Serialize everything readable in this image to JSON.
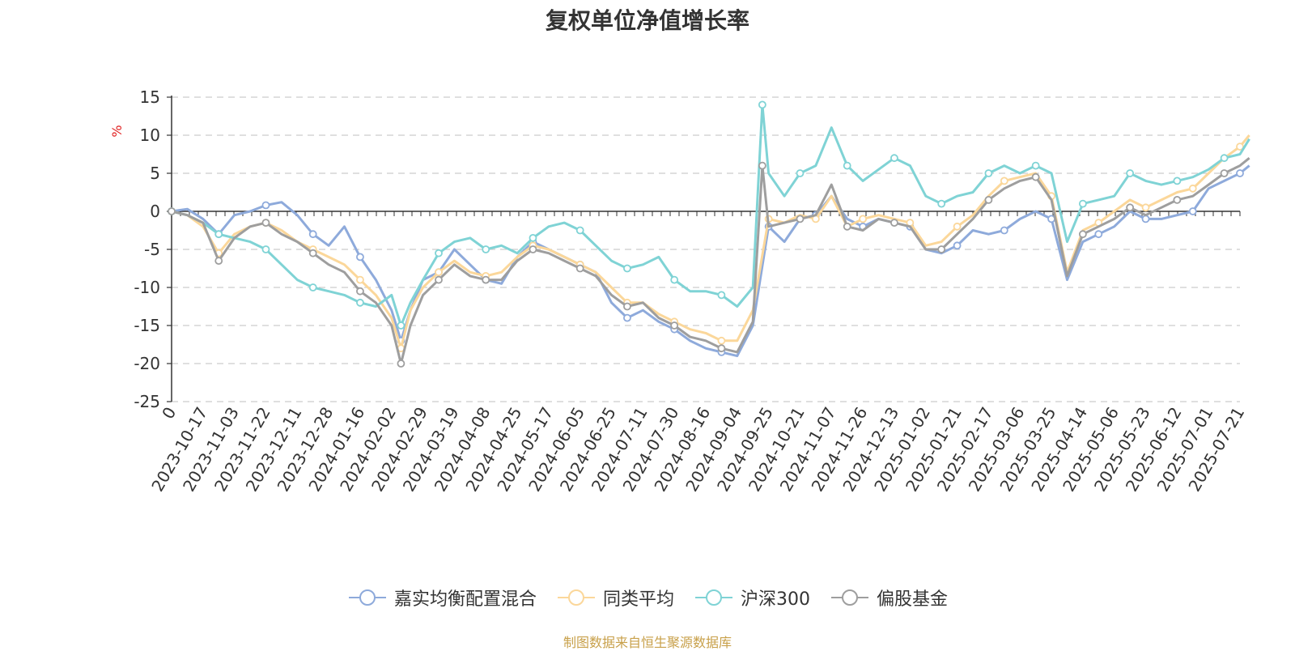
{
  "colors": {
    "jiashi": "#8eaadb",
    "tonglei": "#fbd79a",
    "hs300": "#7fd3d5",
    "piangu": "#9e9e9e",
    "ylabel": "#e02020",
    "source": "#c8a04a"
  },
  "source_note": "制图数据来自恒生聚源数据库",
  "chart_data": {
    "type": "line",
    "title": "复权单位净值增长率",
    "xlabel": "",
    "ylabel": "%",
    "ylim": [
      -25,
      15
    ],
    "yticks": [
      15,
      10,
      5,
      0,
      -5,
      -10,
      -15,
      -20,
      -25
    ],
    "xticks": [
      "0",
      "2023-10-17",
      "2023-11-03",
      "2023-11-22",
      "2023-12-11",
      "2023-12-28",
      "2024-01-16",
      "2024-02-02",
      "2024-02-29",
      "2024-03-19",
      "2024-04-08",
      "2024-04-25",
      "2024-05-17",
      "2024-06-05",
      "2024-06-25",
      "2024-07-11",
      "2024-07-30",
      "2024-08-16",
      "2024-09-04",
      "2024-09-25",
      "2024-10-21",
      "2024-11-07",
      "2024-11-26",
      "2024-12-13",
      "2025-01-02",
      "2025-01-21",
      "2025-02-17",
      "2025-03-06",
      "2025-03-25",
      "2025-04-14",
      "2025-05-06",
      "2025-05-23",
      "2025-06-12",
      "2025-07-01",
      "2025-07-21"
    ],
    "grid": true,
    "legend_position": "bottom",
    "series": [
      {
        "name": "嘉实均衡配置混合",
        "color_key": "jiashi",
        "points": [
          [
            0,
            0
          ],
          [
            0.5,
            0.3
          ],
          [
            1,
            -1
          ],
          [
            1.5,
            -3
          ],
          [
            2,
            -0.5
          ],
          [
            2.5,
            0
          ],
          [
            3,
            0.8
          ],
          [
            3.5,
            1.2
          ],
          [
            4,
            -0.5
          ],
          [
            4.5,
            -3
          ],
          [
            5,
            -4.5
          ],
          [
            5.5,
            -2
          ],
          [
            6,
            -6
          ],
          [
            6.5,
            -9
          ],
          [
            7,
            -13
          ],
          [
            7.3,
            -17
          ],
          [
            7.6,
            -13
          ],
          [
            8,
            -9
          ],
          [
            8.5,
            -8
          ],
          [
            9,
            -5
          ],
          [
            9.5,
            -7
          ],
          [
            10,
            -9
          ],
          [
            10.5,
            -9.5
          ],
          [
            11,
            -6
          ],
          [
            11.5,
            -4
          ],
          [
            12,
            -5
          ],
          [
            12.5,
            -6
          ],
          [
            13,
            -7
          ],
          [
            13.5,
            -8
          ],
          [
            14,
            -12
          ],
          [
            14.5,
            -14
          ],
          [
            15,
            -13
          ],
          [
            15.5,
            -14.5
          ],
          [
            16,
            -15.5
          ],
          [
            16.5,
            -17
          ],
          [
            17,
            -18
          ],
          [
            17.5,
            -18.5
          ],
          [
            18,
            -19
          ],
          [
            18.5,
            -15
          ],
          [
            19,
            -2
          ],
          [
            19.5,
            -4
          ],
          [
            20,
            -1
          ],
          [
            20.5,
            -0.5
          ],
          [
            21,
            2
          ],
          [
            21.5,
            -1
          ],
          [
            22,
            -2
          ],
          [
            22.5,
            -1
          ],
          [
            23,
            -1.5
          ],
          [
            23.5,
            -2
          ],
          [
            24,
            -5
          ],
          [
            24.5,
            -5.5
          ],
          [
            25,
            -4.5
          ],
          [
            25.5,
            -2.5
          ],
          [
            26,
            -3
          ],
          [
            26.5,
            -2.5
          ],
          [
            27,
            -1
          ],
          [
            27.5,
            0
          ],
          [
            28,
            -1
          ],
          [
            28.5,
            -9
          ],
          [
            29,
            -4
          ],
          [
            29.5,
            -3
          ],
          [
            30,
            -2
          ],
          [
            30.5,
            0
          ],
          [
            31,
            -1
          ],
          [
            31.5,
            -1
          ],
          [
            32,
            -0.5
          ],
          [
            32.5,
            0
          ],
          [
            33,
            3
          ],
          [
            33.5,
            4
          ],
          [
            34,
            5
          ],
          [
            34.3,
            6
          ]
        ]
      },
      {
        "name": "同类平均",
        "color_key": "tonglei",
        "points": [
          [
            0,
            0
          ],
          [
            0.5,
            -0.5
          ],
          [
            1,
            -2
          ],
          [
            1.5,
            -5.5
          ],
          [
            2,
            -3
          ],
          [
            2.5,
            -2
          ],
          [
            3,
            -1.5
          ],
          [
            3.5,
            -2.5
          ],
          [
            4,
            -4
          ],
          [
            4.5,
            -5
          ],
          [
            5,
            -6
          ],
          [
            5.5,
            -7
          ],
          [
            6,
            -9
          ],
          [
            6.5,
            -11
          ],
          [
            7,
            -14
          ],
          [
            7.3,
            -18
          ],
          [
            7.6,
            -13
          ],
          [
            8,
            -10
          ],
          [
            8.5,
            -8
          ],
          [
            9,
            -6.5
          ],
          [
            9.5,
            -8
          ],
          [
            10,
            -8.5
          ],
          [
            10.5,
            -8
          ],
          [
            11,
            -6
          ],
          [
            11.5,
            -4.5
          ],
          [
            12,
            -5
          ],
          [
            12.5,
            -6
          ],
          [
            13,
            -7
          ],
          [
            13.5,
            -8
          ],
          [
            14,
            -10
          ],
          [
            14.5,
            -12
          ],
          [
            15,
            -12
          ],
          [
            15.5,
            -13.5
          ],
          [
            16,
            -14.5
          ],
          [
            16.5,
            -15.5
          ],
          [
            17,
            -16
          ],
          [
            17.5,
            -17
          ],
          [
            18,
            -17
          ],
          [
            18.5,
            -13
          ],
          [
            19,
            -1
          ],
          [
            19.5,
            -1.5
          ],
          [
            20,
            -0.5
          ],
          [
            20.5,
            -1
          ],
          [
            21,
            2
          ],
          [
            21.5,
            -2
          ],
          [
            22,
            -1
          ],
          [
            22.5,
            -0.5
          ],
          [
            23,
            -1
          ],
          [
            23.5,
            -1.5
          ],
          [
            24,
            -4.5
          ],
          [
            24.5,
            -4
          ],
          [
            25,
            -2
          ],
          [
            25.5,
            -0.5
          ],
          [
            26,
            2
          ],
          [
            26.5,
            4
          ],
          [
            27,
            4.5
          ],
          [
            27.5,
            5
          ],
          [
            28,
            2
          ],
          [
            28.5,
            -8
          ],
          [
            29,
            -2.5
          ],
          [
            29.5,
            -1.5
          ],
          [
            30,
            0
          ],
          [
            30.5,
            1.5
          ],
          [
            31,
            0.5
          ],
          [
            31.5,
            1.5
          ],
          [
            32,
            2.5
          ],
          [
            32.5,
            3
          ],
          [
            33,
            5
          ],
          [
            33.5,
            7
          ],
          [
            34,
            8.5
          ],
          [
            34.3,
            10
          ]
        ]
      },
      {
        "name": "沪深300",
        "color_key": "hs300",
        "points": [
          [
            0,
            0
          ],
          [
            0.5,
            -0.5
          ],
          [
            1,
            -1.5
          ],
          [
            1.5,
            -3
          ],
          [
            2,
            -3.5
          ],
          [
            2.5,
            -4
          ],
          [
            3,
            -5
          ],
          [
            3.5,
            -7
          ],
          [
            4,
            -9
          ],
          [
            4.5,
            -10
          ],
          [
            5,
            -10.5
          ],
          [
            5.5,
            -11
          ],
          [
            6,
            -12
          ],
          [
            6.5,
            -12.5
          ],
          [
            7,
            -11
          ],
          [
            7.3,
            -15
          ],
          [
            7.6,
            -12
          ],
          [
            8,
            -9
          ],
          [
            8.5,
            -5.5
          ],
          [
            9,
            -4
          ],
          [
            9.5,
            -3.5
          ],
          [
            10,
            -5
          ],
          [
            10.5,
            -4.5
          ],
          [
            11,
            -5.5
          ],
          [
            11.5,
            -3.5
          ],
          [
            12,
            -2
          ],
          [
            12.5,
            -1.5
          ],
          [
            13,
            -2.5
          ],
          [
            13.5,
            -4.5
          ],
          [
            14,
            -6.5
          ],
          [
            14.5,
            -7.5
          ],
          [
            15,
            -7
          ],
          [
            15.5,
            -6
          ],
          [
            16,
            -9
          ],
          [
            16.5,
            -10.5
          ],
          [
            17,
            -10.5
          ],
          [
            17.5,
            -11
          ],
          [
            18,
            -12.5
          ],
          [
            18.5,
            -10
          ],
          [
            18.8,
            14
          ],
          [
            19,
            5
          ],
          [
            19.5,
            2
          ],
          [
            20,
            5
          ],
          [
            20.5,
            6
          ],
          [
            21,
            11
          ],
          [
            21.5,
            6
          ],
          [
            22,
            4
          ],
          [
            22.5,
            5.5
          ],
          [
            23,
            7
          ],
          [
            23.5,
            6
          ],
          [
            24,
            2
          ],
          [
            24.5,
            1
          ],
          [
            25,
            2
          ],
          [
            25.5,
            2.5
          ],
          [
            26,
            5
          ],
          [
            26.5,
            6
          ],
          [
            27,
            5
          ],
          [
            27.5,
            6
          ],
          [
            28,
            5
          ],
          [
            28.5,
            -4
          ],
          [
            29,
            1
          ],
          [
            29.5,
            1.5
          ],
          [
            30,
            2
          ],
          [
            30.5,
            5
          ],
          [
            31,
            4
          ],
          [
            31.5,
            3.5
          ],
          [
            32,
            4
          ],
          [
            32.5,
            4.5
          ],
          [
            33,
            5.5
          ],
          [
            33.5,
            7
          ],
          [
            34,
            7.5
          ],
          [
            34.3,
            9.5
          ]
        ]
      },
      {
        "name": "偏股基金",
        "color_key": "piangu",
        "points": [
          [
            0,
            0
          ],
          [
            0.5,
            -0.5
          ],
          [
            1,
            -1.5
          ],
          [
            1.5,
            -6.5
          ],
          [
            2,
            -3.5
          ],
          [
            2.5,
            -2
          ],
          [
            3,
            -1.5
          ],
          [
            3.5,
            -3
          ],
          [
            4,
            -4
          ],
          [
            4.5,
            -5.5
          ],
          [
            5,
            -7
          ],
          [
            5.5,
            -8
          ],
          [
            6,
            -10.5
          ],
          [
            6.5,
            -12
          ],
          [
            7,
            -15
          ],
          [
            7.3,
            -20
          ],
          [
            7.6,
            -15
          ],
          [
            8,
            -11
          ],
          [
            8.5,
            -9
          ],
          [
            9,
            -7
          ],
          [
            9.5,
            -8.5
          ],
          [
            10,
            -9
          ],
          [
            10.5,
            -9
          ],
          [
            11,
            -6.5
          ],
          [
            11.5,
            -5
          ],
          [
            12,
            -5.5
          ],
          [
            12.5,
            -6.5
          ],
          [
            13,
            -7.5
          ],
          [
            13.5,
            -8.5
          ],
          [
            14,
            -11
          ],
          [
            14.5,
            -12.5
          ],
          [
            15,
            -12
          ],
          [
            15.5,
            -14
          ],
          [
            16,
            -15
          ],
          [
            16.5,
            -16.5
          ],
          [
            17,
            -17
          ],
          [
            17.5,
            -18
          ],
          [
            18,
            -18.5
          ],
          [
            18.5,
            -14.5
          ],
          [
            18.8,
            6
          ],
          [
            19,
            -2
          ],
          [
            19.5,
            -1.5
          ],
          [
            20,
            -1
          ],
          [
            20.5,
            -0.5
          ],
          [
            21,
            3.5
          ],
          [
            21.5,
            -2
          ],
          [
            22,
            -2.5
          ],
          [
            22.5,
            -1
          ],
          [
            23,
            -1.5
          ],
          [
            23.5,
            -2
          ],
          [
            24,
            -5
          ],
          [
            24.5,
            -5
          ],
          [
            25,
            -3
          ],
          [
            25.5,
            -1
          ],
          [
            26,
            1.5
          ],
          [
            26.5,
            3
          ],
          [
            27,
            4
          ],
          [
            27.5,
            4.5
          ],
          [
            28,
            1.5
          ],
          [
            28.5,
            -8.5
          ],
          [
            29,
            -3
          ],
          [
            29.5,
            -2
          ],
          [
            30,
            -1
          ],
          [
            30.5,
            0.5
          ],
          [
            31,
            -0.5
          ],
          [
            31.5,
            0.5
          ],
          [
            32,
            1.5
          ],
          [
            32.5,
            2
          ],
          [
            33,
            3.5
          ],
          [
            33.5,
            5
          ],
          [
            34,
            6
          ],
          [
            34.3,
            7
          ]
        ]
      }
    ]
  }
}
